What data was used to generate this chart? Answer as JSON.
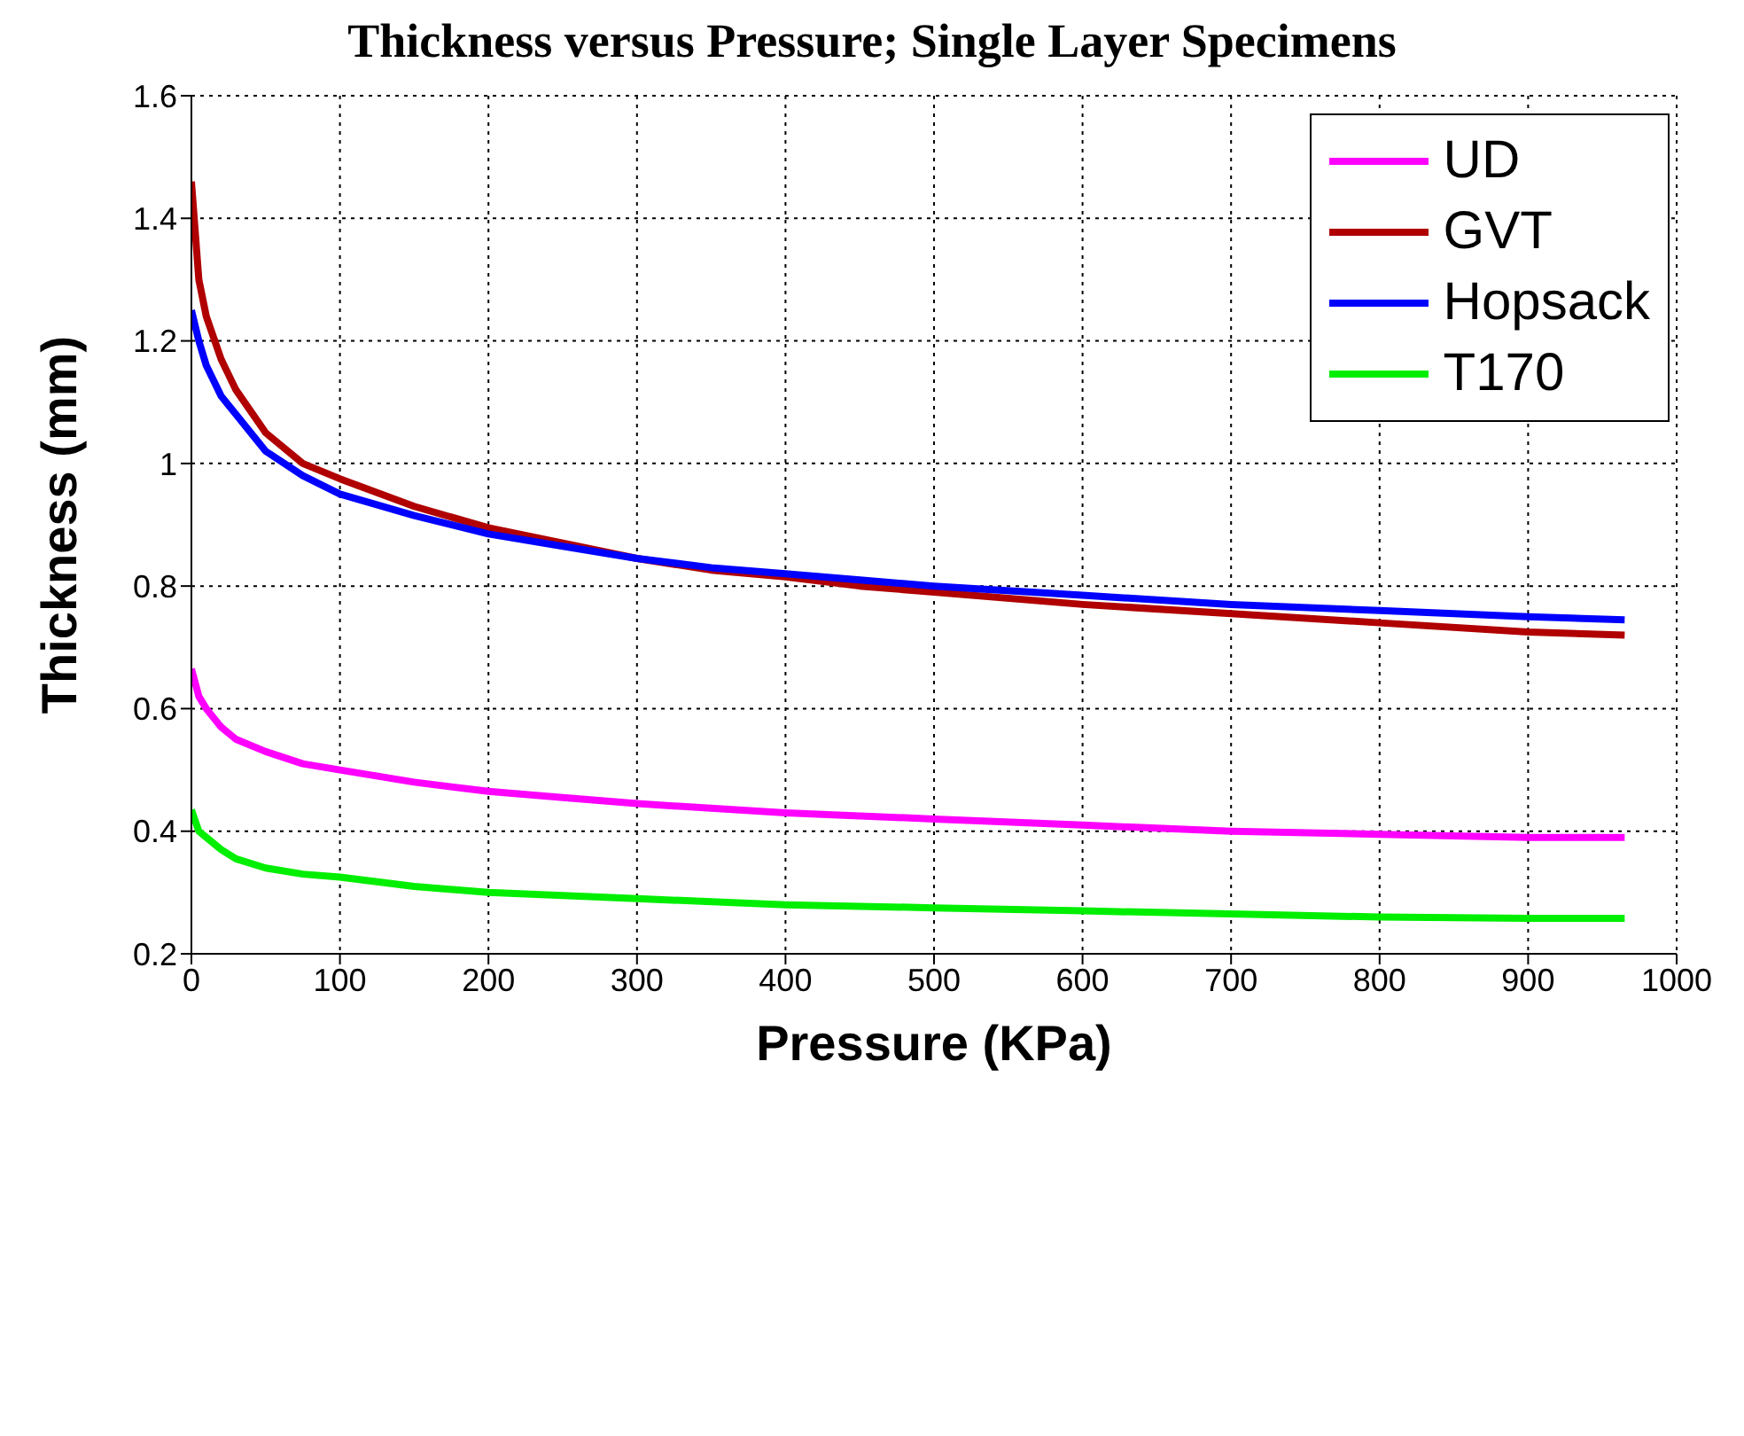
{
  "chart_data": {
    "type": "line",
    "title": "Thickness versus Pressure; Single Layer Specimens",
    "xlabel": "Pressure (KPa)",
    "ylabel": "Thickness (mm)",
    "xlim": [
      0,
      1000
    ],
    "xticks": [
      0,
      100,
      200,
      300,
      400,
      500,
      600,
      700,
      800,
      900,
      1000
    ],
    "ylim": [
      0.2,
      1.6
    ],
    "yticks": [
      0.2,
      0.4,
      0.6,
      0.8,
      1,
      1.2,
      1.4,
      1.6
    ],
    "grid": true,
    "legend": "top right",
    "marker": "none",
    "line_style": "solid",
    "series": [
      {
        "name": "UD",
        "color": "#ff00ff",
        "x": [
          0,
          5,
          10,
          20,
          30,
          50,
          75,
          100,
          150,
          200,
          250,
          300,
          400,
          500,
          600,
          700,
          800,
          900,
          965
        ],
        "values": [
          0.665,
          0.62,
          0.6,
          0.57,
          0.55,
          0.53,
          0.51,
          0.5,
          0.48,
          0.465,
          0.455,
          0.445,
          0.43,
          0.42,
          0.41,
          0.4,
          0.395,
          0.39,
          0.39
        ]
      },
      {
        "name": "GVT",
        "color": "#b00000",
        "x": [
          0,
          5,
          10,
          20,
          30,
          50,
          75,
          100,
          150,
          200,
          250,
          300,
          350,
          400,
          450,
          500,
          600,
          700,
          800,
          900,
          965
        ],
        "values": [
          1.46,
          1.3,
          1.24,
          1.17,
          1.12,
          1.05,
          1.0,
          0.975,
          0.93,
          0.895,
          0.87,
          0.845,
          0.826,
          0.815,
          0.8,
          0.79,
          0.77,
          0.755,
          0.74,
          0.725,
          0.72
        ]
      },
      {
        "name": "Hopsack",
        "color": "#0000ff",
        "x": [
          0,
          5,
          10,
          20,
          30,
          50,
          75,
          100,
          150,
          200,
          250,
          300,
          350,
          400,
          450,
          500,
          600,
          700,
          800,
          900,
          965
        ],
        "values": [
          1.25,
          1.2,
          1.16,
          1.11,
          1.08,
          1.02,
          0.98,
          0.95,
          0.915,
          0.885,
          0.865,
          0.845,
          0.83,
          0.82,
          0.81,
          0.8,
          0.785,
          0.77,
          0.76,
          0.75,
          0.745
        ]
      },
      {
        "name": "T170",
        "color": "#00ee00",
        "x": [
          0,
          5,
          10,
          20,
          30,
          50,
          75,
          100,
          150,
          200,
          300,
          400,
          500,
          600,
          700,
          800,
          900,
          965
        ],
        "values": [
          0.435,
          0.4,
          0.39,
          0.37,
          0.355,
          0.34,
          0.33,
          0.325,
          0.31,
          0.3,
          0.29,
          0.28,
          0.275,
          0.27,
          0.265,
          0.26,
          0.258,
          0.258
        ]
      }
    ]
  }
}
